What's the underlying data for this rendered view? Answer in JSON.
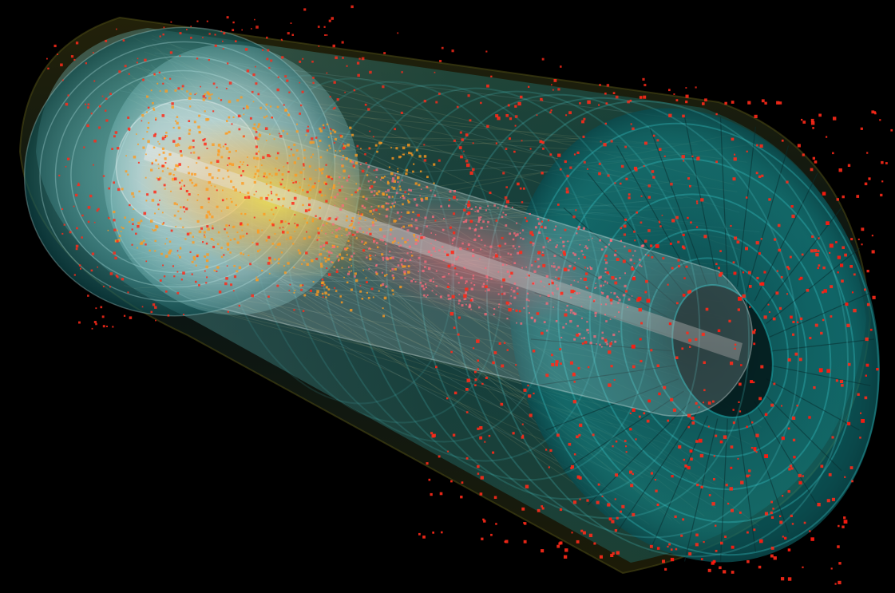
{
  "scene": {
    "background": "#000000",
    "subject": "3d-particle-detector-event-display",
    "colors": {
      "detector_cyan": "#1fb3b3",
      "detector_teal_dark": "#0a4f52",
      "inner_white": "#e8f2f2",
      "outer_shell_olive": "#3b3a12",
      "beam_pipe": "#cfcfcf",
      "hit_red": "#ff2a1a",
      "hit_orange": "#ff9a1e",
      "hit_pink": "#ff6a7a",
      "glow_yellow": "#ffd21a"
    }
  }
}
